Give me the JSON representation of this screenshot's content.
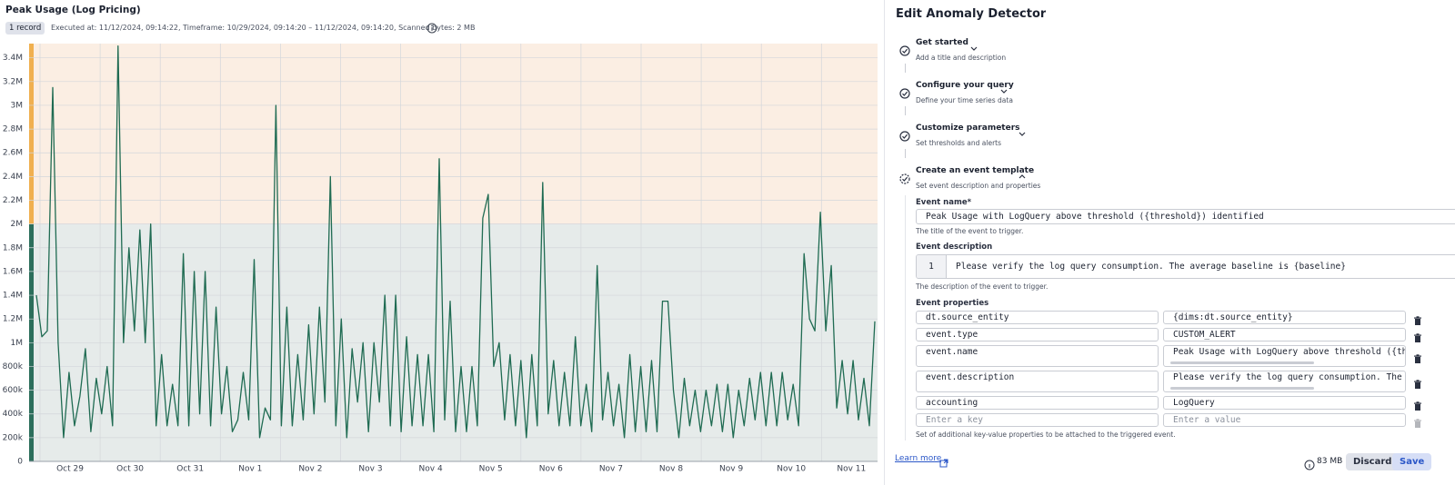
{
  "chart_panel": {
    "title": "Peak Usage (Log Pricing)",
    "record_badge": "1 record",
    "meta": "Executed at: 11/12/2024, 09:14:22, Timeframe: 10/29/2024, 09:14:20 – 11/12/2024, 09:14:20, Scanned bytes: 2 MB",
    "chart": {
      "type": "line",
      "color": "#1f6b52",
      "grid": true,
      "threshold": 2000000,
      "above_color": "#fbeee3",
      "below_color": "#e6ebea",
      "x_labels": [
        "Oct 29",
        "Oct 30",
        "Oct 31",
        "Nov 1",
        "Nov 2",
        "Nov 3",
        "Nov 4",
        "Nov 5",
        "Nov 6",
        "Nov 7",
        "Nov 8",
        "Nov 9",
        "Nov 10",
        "Nov 11"
      ],
      "ylim": [
        0,
        3520000
      ],
      "yticks": [
        0,
        {
          "value": 200000,
          "label": "200k"
        },
        {
          "value": 400000,
          "label": "400k"
        },
        {
          "value": 600000,
          "label": "600k"
        },
        {
          "value": 800000,
          "label": "800k"
        },
        {
          "value": 1000000,
          "label": "1M"
        },
        {
          "value": 1200000,
          "label": "1.2M"
        },
        {
          "value": 1400000,
          "label": "1.4M"
        },
        {
          "value": 1600000,
          "label": "1.6M"
        },
        {
          "value": 1800000,
          "label": "1.8M"
        },
        {
          "value": 2000000,
          "label": "2M"
        },
        {
          "value": 2200000,
          "label": "2.2M"
        },
        {
          "value": 2400000,
          "label": "2.4M"
        },
        {
          "value": 2600000,
          "label": "2.6M"
        },
        {
          "value": 2800000,
          "label": "2.8M"
        },
        {
          "value": 3000000,
          "label": "3M"
        },
        {
          "value": 3200000,
          "label": "3.2M"
        },
        {
          "value": 3400000,
          "label": "3.4M"
        }
      ],
      "values": [
        1400000,
        1050000,
        1100000,
        3150000,
        1000000,
        200000,
        750000,
        300000,
        550000,
        950000,
        250000,
        700000,
        400000,
        800000,
        300000,
        3500000,
        1000000,
        1800000,
        1100000,
        1950000,
        1000000,
        2000000,
        300000,
        900000,
        300000,
        650000,
        300000,
        1750000,
        300000,
        1600000,
        400000,
        1600000,
        300000,
        1300000,
        400000,
        800000,
        250000,
        350000,
        750000,
        350000,
        1700000,
        200000,
        450000,
        350000,
        3000000,
        300000,
        1300000,
        300000,
        900000,
        350000,
        1150000,
        400000,
        1300000,
        500000,
        2400000,
        300000,
        1200000,
        200000,
        950000,
        500000,
        1000000,
        250000,
        1000000,
        500000,
        1400000,
        300000,
        1400000,
        250000,
        1050000,
        300000,
        900000,
        300000,
        900000,
        250000,
        2550000,
        350000,
        1350000,
        250000,
        800000,
        250000,
        800000,
        300000,
        2050000,
        2250000,
        800000,
        1000000,
        350000,
        900000,
        300000,
        850000,
        200000,
        900000,
        300000,
        2350000,
        400000,
        850000,
        300000,
        750000,
        300000,
        1050000,
        300000,
        650000,
        250000,
        1650000,
        350000,
        750000,
        300000,
        650000,
        200000,
        900000,
        250000,
        800000,
        250000,
        850000,
        250000,
        1350000,
        1350000,
        600000,
        200000,
        700000,
        300000,
        600000,
        250000,
        600000,
        300000,
        650000,
        250000,
        650000,
        200000,
        600000,
        300000,
        700000,
        350000,
        750000,
        300000,
        750000,
        300000,
        750000,
        350000,
        650000,
        300000,
        1750000,
        1200000,
        1100000,
        2100000,
        1100000,
        1650000,
        450000,
        850000,
        400000,
        850000,
        350000,
        700000,
        300000,
        1180000
      ]
    }
  },
  "editor": {
    "title": "Edit Anomaly Detector",
    "steps": [
      {
        "title": "Get started",
        "subtitle": "Add a title and description"
      },
      {
        "title": "Configure your query",
        "subtitle": "Define your time series data"
      },
      {
        "title": "Customize parameters",
        "subtitle": "Set thresholds and alerts"
      },
      {
        "title": "Create an event template",
        "subtitle": "Set event description and properties"
      }
    ],
    "event_name": {
      "label": "Event name*",
      "value": "Peak Usage with LogQuery above threshold ({threshold}) identified",
      "help": "The title of the event to trigger."
    },
    "event_description": {
      "label": "Event description",
      "line_number": 1,
      "value": "Please verify the log query consumption. The average baseline is {baseline}",
      "help": "The description of the event to trigger."
    },
    "event_properties": {
      "label": "Event properties",
      "rows": [
        [
          "dt.source_entity",
          "{dims:dt.source_entity}"
        ],
        [
          "event.type",
          "CUSTOM_ALERT"
        ],
        [
          "event.name",
          "Peak Usage with LogQuery above threshold ({threshold}) identified"
        ],
        [
          "event.description",
          "Please verify the log query consumption. The average baseline is {baseline}"
        ],
        [
          "accounting",
          "LogQuery"
        ]
      ],
      "placeholder_key": "Enter a key",
      "placeholder_value": "Enter a value",
      "help": "Set of additional key-value properties to be attached to the triggered event."
    },
    "learn_more": "Learn more",
    "size": "83 MB",
    "discard": "Discard",
    "save": "Save"
  }
}
